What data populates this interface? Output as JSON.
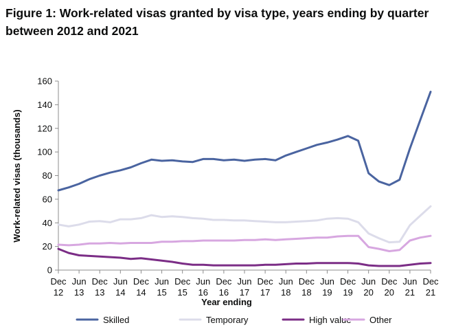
{
  "title": "Figure 1: Work-related visas granted by visa type, years ending by quarter between 2012 and 2021",
  "chart_data": {
    "type": "line",
    "xlabel": "Year ending",
    "ylabel": "Work-related visas (thousands)",
    "ylim": [
      0,
      160
    ],
    "yticks": [
      0,
      20,
      40,
      60,
      80,
      100,
      120,
      140,
      160
    ],
    "grid": false,
    "legend_position": "bottom",
    "x": [
      "Dec 12",
      "Mar 13",
      "Jun 13",
      "Sep 13",
      "Dec 13",
      "Mar 14",
      "Jun 14",
      "Sep 14",
      "Dec 14",
      "Mar 15",
      "Jun 15",
      "Sep 15",
      "Dec 15",
      "Mar 16",
      "Jun 16",
      "Sep 16",
      "Dec 16",
      "Mar 17",
      "Jun 17",
      "Sep 17",
      "Dec 17",
      "Mar 18",
      "Jun 18",
      "Sep 18",
      "Dec 18",
      "Mar 19",
      "Jun 19",
      "Sep 19",
      "Dec 19",
      "Mar 20",
      "Jun 20",
      "Sep 20",
      "Dec 20",
      "Mar 21",
      "Jun 21",
      "Sep 21",
      "Dec 21"
    ],
    "x_tick_labels": [
      {
        "line1": "Dec",
        "line2": "12"
      },
      {
        "line1": "Jun",
        "line2": "13"
      },
      {
        "line1": "Dec",
        "line2": "13"
      },
      {
        "line1": "Jun",
        "line2": "14"
      },
      {
        "line1": "Dec",
        "line2": "14"
      },
      {
        "line1": "Jun",
        "line2": "15"
      },
      {
        "line1": "Dec",
        "line2": "15"
      },
      {
        "line1": "Jun",
        "line2": "16"
      },
      {
        "line1": "Dec",
        "line2": "16"
      },
      {
        "line1": "Jun",
        "line2": "17"
      },
      {
        "line1": "Dec",
        "line2": "17"
      },
      {
        "line1": "Jun",
        "line2": "18"
      },
      {
        "line1": "Dec",
        "line2": "18"
      },
      {
        "line1": "Jun",
        "line2": "19"
      },
      {
        "line1": "Dec",
        "line2": "19"
      },
      {
        "line1": "Jun",
        "line2": "20"
      },
      {
        "line1": "Dec",
        "line2": "20"
      },
      {
        "line1": "Jun",
        "line2": "21"
      },
      {
        "line1": "Dec",
        "line2": "21"
      }
    ],
    "series": [
      {
        "name": "Skilled",
        "color": "#4a64a0",
        "values": [
          67.5,
          70,
          73,
          77,
          80,
          82.5,
          84.5,
          87,
          90.5,
          93.5,
          92.5,
          93,
          92,
          91.5,
          94,
          94,
          93,
          93.5,
          92.5,
          93.5,
          94,
          93,
          97,
          100,
          103,
          106,
          108,
          110.5,
          113.5,
          109.5,
          82,
          75,
          72,
          76.5,
          103,
          127,
          151
        ]
      },
      {
        "name": "Temporary",
        "color": "#dcdcea",
        "values": [
          38.5,
          37,
          38.5,
          41,
          41.5,
          40.5,
          43,
          43,
          44,
          46.5,
          45,
          45.5,
          45,
          44,
          43.5,
          42.5,
          42.5,
          42,
          42,
          41.5,
          41,
          40.5,
          40.5,
          41,
          41.5,
          42,
          43.5,
          44,
          43.5,
          40.5,
          31,
          27,
          23.5,
          24,
          38,
          46,
          54
        ]
      },
      {
        "name": "High value",
        "color": "#7b2d86",
        "values": [
          18,
          14.5,
          12.5,
          12,
          11.5,
          11,
          10.5,
          9.5,
          10,
          9,
          8,
          7,
          5.5,
          4.5,
          4.5,
          4,
          4,
          4,
          4,
          4,
          4.5,
          4.5,
          5,
          5.5,
          5.5,
          6,
          6,
          6,
          6,
          5.5,
          4,
          3.5,
          3.5,
          3.5,
          4.5,
          5.5,
          6
        ]
      },
      {
        "name": "Other",
        "color": "#d7a7e0",
        "values": [
          21.5,
          21,
          21.5,
          22.5,
          22.5,
          23,
          22.5,
          23,
          23,
          23,
          24,
          24,
          24.5,
          24.5,
          25,
          25,
          25,
          25,
          25.5,
          25.5,
          26,
          25.5,
          26,
          26.5,
          27,
          27.5,
          27.5,
          28.5,
          29,
          29,
          19.5,
          18,
          16,
          17,
          25,
          27.5,
          29
        ]
      }
    ]
  }
}
